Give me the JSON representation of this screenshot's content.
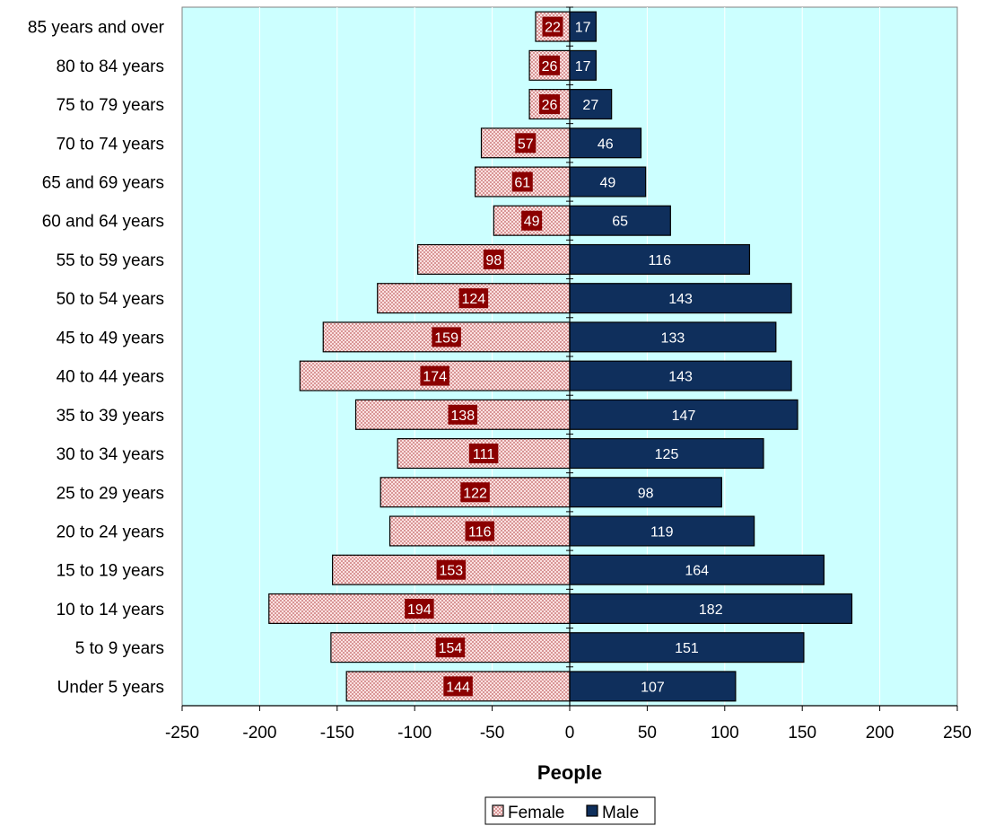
{
  "chart_data": {
    "type": "bar",
    "orientation": "horizontal",
    "categories": [
      "Under 5 years",
      "5 to 9 years",
      "10 to 14 years",
      "15 to 19 years",
      "20 to 24 years",
      "25 to 29 years",
      "30 to 34 years",
      "35 to 39 years",
      "40 to 44 years",
      "45 to 49 years",
      "50 to 54 years",
      "55 to 59 years",
      "60 and 64 years",
      "65 and 69 years",
      "70 to 74 years",
      "75 to 79 years",
      "80 to 84 years",
      "85 years and over"
    ],
    "series": [
      {
        "name": "Female",
        "values": [
          -144,
          -154,
          -194,
          -153,
          -116,
          -122,
          -111,
          -138,
          -174,
          -159,
          -124,
          -98,
          -49,
          -61,
          -57,
          -26,
          -26,
          -22
        ],
        "data_labels": [
          "144",
          "154",
          "194",
          "153",
          "116",
          "122",
          "111",
          "138",
          "174",
          "159",
          "124",
          "98",
          "49",
          "61",
          "57",
          "26",
          "26",
          "22"
        ],
        "color": "#f4c6c6",
        "label_bg": "#8b0000"
      },
      {
        "name": "Male",
        "values": [
          107,
          151,
          182,
          164,
          119,
          98,
          125,
          147,
          143,
          133,
          143,
          116,
          65,
          49,
          46,
          27,
          17,
          17
        ],
        "data_labels": [
          "107",
          "151",
          "182",
          "164",
          "119",
          "98",
          "125",
          "147",
          "143",
          "133",
          "143",
          "116",
          "65",
          "49",
          "46",
          "27",
          "17",
          "17"
        ],
        "color": "#0f2f5c"
      }
    ],
    "xlabel": "People",
    "xlim": [
      -250,
      250
    ],
    "x_ticks": [
      -250,
      -200,
      -150,
      -100,
      -50,
      0,
      50,
      100,
      150,
      200,
      250
    ],
    "x_tick_labels": [
      "-250",
      "-200",
      "-150",
      "-100",
      "-50",
      "0",
      "50",
      "100",
      "150",
      "200",
      "250"
    ],
    "plot_background": "#ccffff",
    "grid": true,
    "legend_position": "bottom",
    "legend": [
      {
        "label": "Female",
        "icon": "dotted-square-icon"
      },
      {
        "label": "Male",
        "icon": "solid-square-icon"
      }
    ]
  }
}
